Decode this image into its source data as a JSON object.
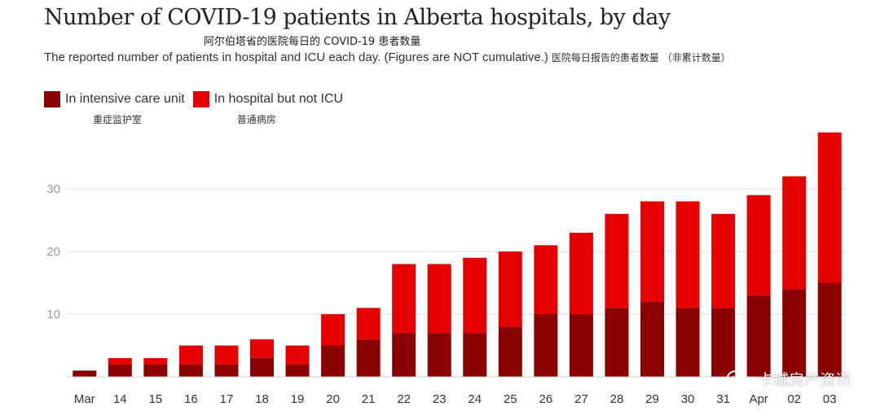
{
  "header": {
    "title": "Number of COVID-19 patients in Alberta hospitals, by day",
    "title_cn": "阿尔伯塔省的医院每日的 COVID-19 患者数量",
    "subtitle": "The reported number of patients in hospital and ICU each day. (Figures are NOT cumulative.)",
    "subtitle_cn": "医院每日报告的患者数量 （非累计数量）"
  },
  "legend": {
    "icu_label": "In intensive care unit",
    "icu_label_cn": "重症监护室",
    "hospital_label": "In hospital but not ICU",
    "hospital_label_cn": "普通病房"
  },
  "watermark": {
    "text": "卡城房产资讯"
  },
  "colors": {
    "icu": "#8b0000",
    "hospital": "#e60000",
    "grid": "#dddddd"
  },
  "chart_data": {
    "type": "bar",
    "stacked": true,
    "categories": [
      "Mar",
      "14",
      "15",
      "16",
      "17",
      "18",
      "19",
      "20",
      "21",
      "22",
      "23",
      "24",
      "25",
      "26",
      "27",
      "28",
      "29",
      "30",
      "31",
      "Apr",
      "02",
      "03"
    ],
    "series": [
      {
        "name": "In intensive care unit",
        "values": [
          1,
          2,
          2,
          2,
          2,
          3,
          2,
          5,
          6,
          7,
          7,
          7,
          8,
          10,
          10,
          11,
          12,
          11,
          11,
          13,
          14,
          15
        ]
      },
      {
        "name": "In hospital but not ICU",
        "values": [
          0,
          1,
          1,
          3,
          3,
          3,
          3,
          5,
          5,
          11,
          11,
          12,
          12,
          11,
          13,
          15,
          16,
          17,
          15,
          16,
          18,
          24
        ]
      }
    ],
    "yticks": [
      10,
      20,
      30
    ],
    "ylim": [
      0,
      40
    ],
    "grid": true,
    "legend_position": "top-left"
  }
}
